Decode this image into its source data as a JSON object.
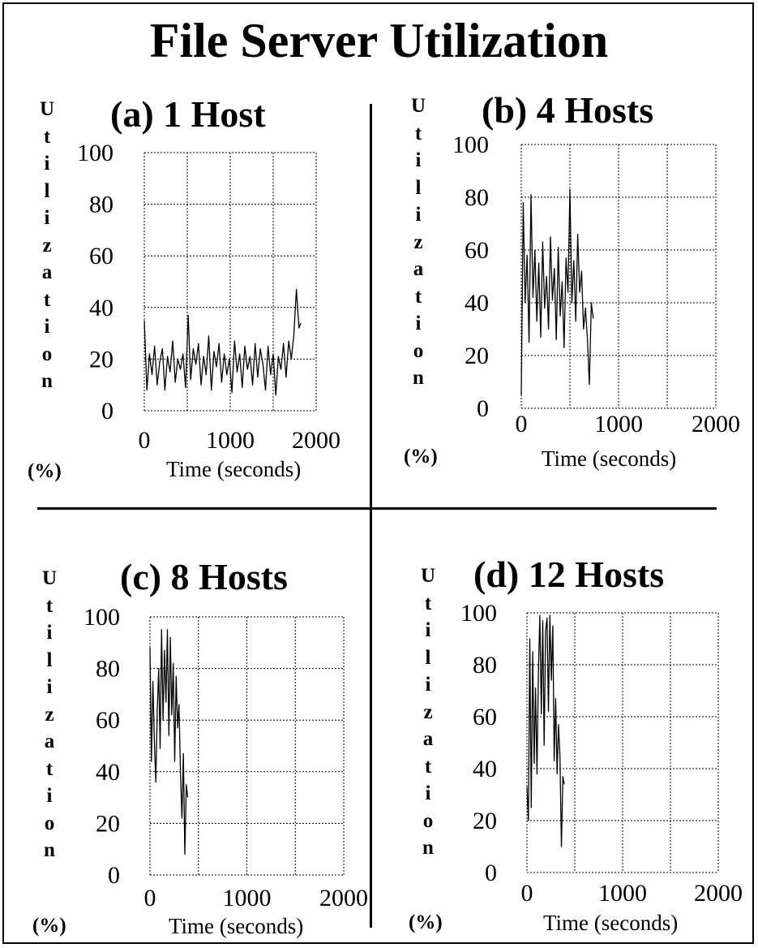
{
  "title": "File Server Utilization",
  "chart_data": [
    {
      "type": "line",
      "title": "(a) 1 Host",
      "xlabel": "Time (seconds)",
      "ylabel_letters": [
        "U",
        "t",
        "i",
        "l",
        "i",
        "z",
        "a",
        "t",
        "i",
        "o",
        "n"
      ],
      "ylabel_unit": "(%)",
      "xlim": [
        0,
        2000
      ],
      "ylim": [
        0,
        100
      ],
      "xticks": [
        "0",
        "1000",
        "2000"
      ],
      "yticks": [
        "100",
        "80",
        "60",
        "40",
        "20",
        "0"
      ],
      "grid": true,
      "series": [
        {
          "x": [
            0,
            30,
            60,
            90,
            120,
            150,
            180,
            210,
            240,
            270,
            300,
            330,
            360,
            390,
            420,
            450,
            480,
            510,
            540,
            570,
            600,
            630,
            660,
            690,
            720,
            750,
            780,
            810,
            840,
            870,
            900,
            930,
            960,
            990,
            1020,
            1050,
            1080,
            1110,
            1140,
            1170,
            1200,
            1230,
            1260,
            1290,
            1320,
            1350,
            1380,
            1410,
            1440,
            1470,
            1500,
            1530,
            1560,
            1590,
            1620,
            1650,
            1680,
            1710,
            1740,
            1770,
            1800,
            1820
          ],
          "y": [
            35,
            8,
            22,
            14,
            25,
            10,
            19,
            24,
            8,
            21,
            15,
            27,
            11,
            20,
            16,
            22,
            9,
            37,
            12,
            24,
            18,
            26,
            10,
            21,
            14,
            29,
            8,
            23,
            17,
            26,
            11,
            22,
            14,
            20,
            7,
            27,
            15,
            22,
            9,
            25,
            16,
            21,
            10,
            26,
            13,
            24,
            18,
            8,
            25,
            14,
            22,
            6,
            21,
            16,
            26,
            13,
            27,
            20,
            29,
            47,
            32,
            34
          ]
        }
      ]
    },
    {
      "type": "line",
      "title": "(b) 4 Hosts",
      "xlabel": "Time (seconds)",
      "ylabel_letters": [
        "U",
        "t",
        "i",
        "l",
        "i",
        "z",
        "a",
        "t",
        "i",
        "o",
        "n"
      ],
      "ylabel_unit": "(%)",
      "xlim": [
        0,
        2000
      ],
      "ylim": [
        0,
        100
      ],
      "xticks": [
        "0",
        "1000",
        "2000"
      ],
      "yticks": [
        "100",
        "80",
        "60",
        "40",
        "20",
        "0"
      ],
      "grid": true,
      "series": [
        {
          "x": [
            0,
            20,
            40,
            60,
            80,
            100,
            120,
            140,
            160,
            180,
            200,
            220,
            240,
            260,
            280,
            300,
            320,
            340,
            360,
            380,
            400,
            420,
            440,
            460,
            480,
            500,
            520,
            540,
            560,
            580,
            600,
            620,
            640,
            660,
            680,
            700,
            720,
            740
          ],
          "y": [
            5,
            78,
            40,
            58,
            25,
            81,
            42,
            60,
            33,
            55,
            27,
            63,
            38,
            50,
            30,
            65,
            41,
            53,
            26,
            61,
            35,
            48,
            23,
            57,
            44,
            83,
            40,
            56,
            33,
            66,
            44,
            52,
            30,
            38,
            26,
            9,
            40,
            34
          ]
        }
      ]
    },
    {
      "type": "line",
      "title": "(c) 8 Hosts",
      "xlabel": "Time (seconds)",
      "ylabel_letters": [
        "U",
        "t",
        "i",
        "l",
        "i",
        "z",
        "a",
        "t",
        "i",
        "o",
        "n"
      ],
      "ylabel_unit": "(%)",
      "xlim": [
        0,
        2000
      ],
      "ylim": [
        0,
        100
      ],
      "xticks": [
        "0",
        "1000",
        "2000"
      ],
      "yticks": [
        "100",
        "80",
        "60",
        "40",
        "20",
        "0"
      ],
      "grid": true,
      "series": [
        {
          "x": [
            0,
            15,
            30,
            45,
            60,
            75,
            90,
            105,
            120,
            135,
            150,
            165,
            180,
            195,
            210,
            225,
            240,
            255,
            270,
            285,
            300,
            315,
            330,
            345,
            360,
            375,
            390
          ],
          "y": [
            88,
            44,
            75,
            52,
            36,
            64,
            80,
            49,
            95,
            60,
            87,
            67,
            95,
            54,
            92,
            62,
            82,
            44,
            77,
            57,
            66,
            40,
            22,
            47,
            8,
            35,
            30
          ]
        }
      ]
    },
    {
      "type": "line",
      "title": "(d) 12 Hosts",
      "xlabel": "Time (seconds)",
      "ylabel_letters": [
        "U",
        "t",
        "i",
        "l",
        "i",
        "z",
        "a",
        "t",
        "i",
        "o",
        "n"
      ],
      "ylabel_unit": "(%)",
      "xlim": [
        0,
        2000
      ],
      "ylim": [
        0,
        100
      ],
      "xticks": [
        "0",
        "1000",
        "2000"
      ],
      "yticks": [
        "100",
        "80",
        "60",
        "40",
        "20",
        "0"
      ],
      "grid": true,
      "series": [
        {
          "x": [
            0,
            15,
            30,
            45,
            60,
            75,
            90,
            105,
            120,
            135,
            150,
            165,
            180,
            195,
            210,
            225,
            240,
            255,
            270,
            285,
            300,
            315,
            330,
            345,
            360,
            375,
            390
          ],
          "y": [
            33,
            20,
            90,
            25,
            85,
            42,
            71,
            38,
            78,
            99,
            61,
            97,
            49,
            93,
            98,
            62,
            99,
            74,
            95,
            43,
            67,
            38,
            57,
            45,
            10,
            37,
            34
          ]
        }
      ]
    }
  ]
}
